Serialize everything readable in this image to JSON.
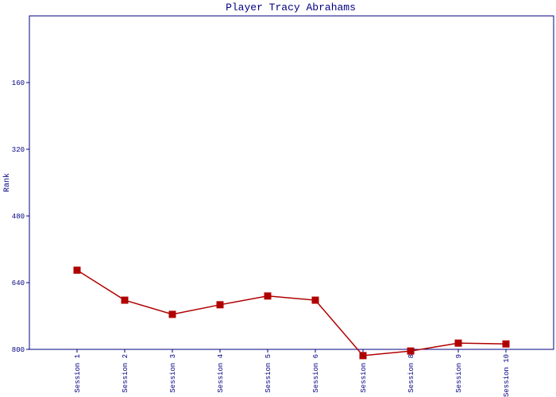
{
  "chart_data": {
    "type": "line",
    "title": "Player Tracy Abrahams",
    "y_label": "Rank",
    "categories": [
      "Session 1",
      "Session 2",
      "Session 3",
      "Session 4",
      "Session 5",
      "Session 6",
      "Session 7",
      "Session 8",
      "Session 9",
      "Session 10"
    ],
    "series": [
      {
        "name": "Tracy Abrahams",
        "color": "#b00000",
        "values": [
          610,
          682,
          716,
          693,
          672,
          682,
          815,
          804,
          785,
          787
        ]
      }
    ],
    "ylim": [
      0,
      800
    ],
    "yticks": [
      160,
      320,
      480,
      640,
      800
    ],
    "y_inverted": true,
    "grid": false
  }
}
